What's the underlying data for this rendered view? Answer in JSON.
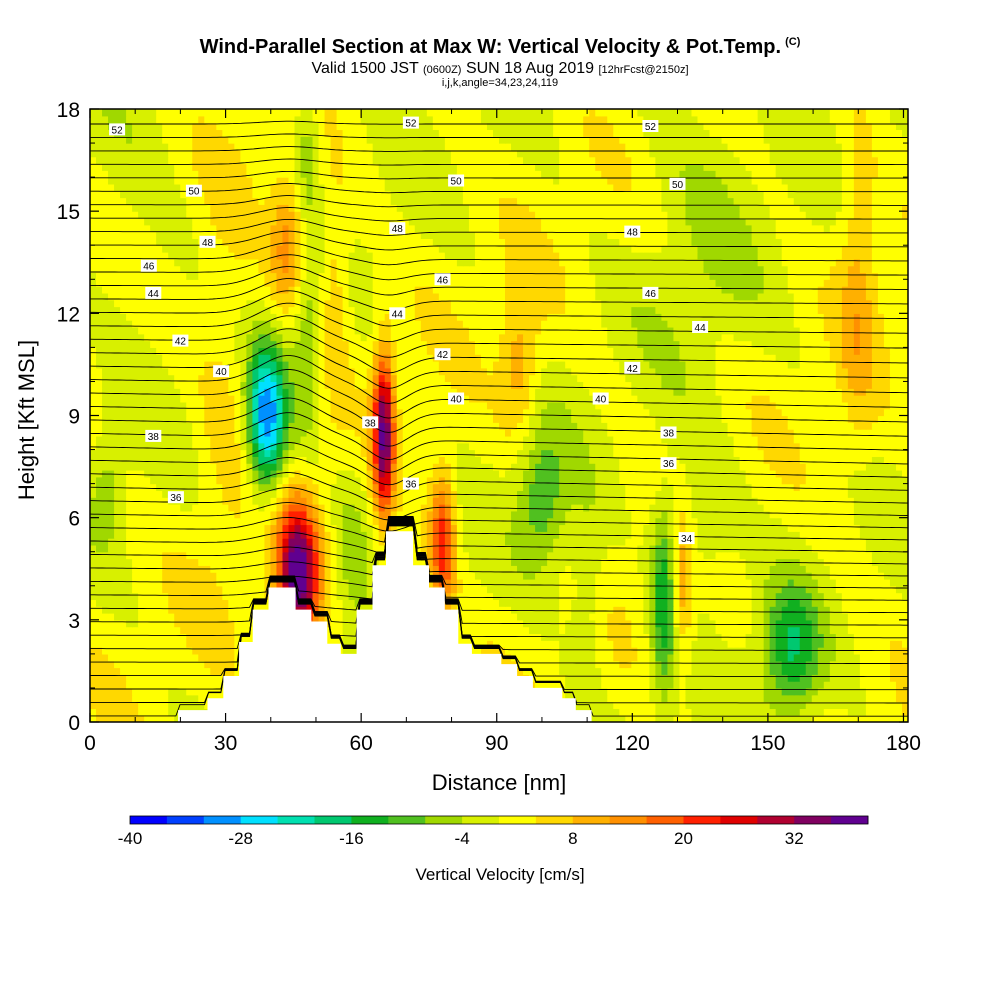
{
  "title": "Wind-Parallel Section at Max W: Vertical Velocity & Pot.Temp.",
  "title_mark": "(C)",
  "subtitle_main": "Valid 1500 JST",
  "subtitle_utc": "(0600Z)",
  "subtitle_date": "SUN 18 Aug 2019",
  "subtitle_fcst": "[12hrFcst@2150z]",
  "subtitle2": "i,j,k,angle=34,23,24,119",
  "colorbar": {
    "title": "Vertical Velocity [cm/s]",
    "tick_labels": [
      "-40",
      "-28",
      "-16",
      "-4",
      "8",
      "20",
      "32"
    ],
    "colors": [
      "#0000ff",
      "#0040ff",
      "#0090ff",
      "#00e0ff",
      "#00e0b0",
      "#00c870",
      "#10b020",
      "#50c020",
      "#a0d800",
      "#d8f000",
      "#ffff00",
      "#ffd800",
      "#ffb000",
      "#ff9000",
      "#ff6000",
      "#ff2000",
      "#e00000",
      "#b00030",
      "#800060",
      "#600090"
    ]
  },
  "chart_data": {
    "type": "heatmap",
    "title": "Wind-Parallel Section at Max W: Vertical Velocity & Pot.Temp.",
    "xlabel": "Distance [nm]",
    "ylabel": "Height [Kft MSL]",
    "xlim": [
      0,
      181
    ],
    "ylim": [
      0,
      18
    ],
    "xticks": [
      0,
      30,
      60,
      90,
      120,
      150,
      180
    ],
    "yticks": [
      0,
      3,
      6,
      9,
      12,
      15,
      18
    ],
    "fill_variable": "Vertical Velocity [cm/s]",
    "fill_range": [
      -40,
      40
    ],
    "contour_variable": "Potential Temperature",
    "terrain_top": [
      [
        0,
        0
      ],
      [
        19.5,
        0
      ],
      [
        19.5,
        0.35
      ],
      [
        26,
        0.35
      ],
      [
        26,
        0.7
      ],
      [
        29.5,
        0.7
      ],
      [
        29.5,
        1.35
      ],
      [
        33,
        1.35
      ],
      [
        33,
        2.35
      ],
      [
        36,
        2.35
      ],
      [
        36,
        3.3
      ],
      [
        39.5,
        3.3
      ],
      [
        39.5,
        3.95
      ],
      [
        45.5,
        3.95
      ],
      [
        45.5,
        3.3
      ],
      [
        49,
        3.3
      ],
      [
        49,
        2.95
      ],
      [
        52.5,
        2.95
      ],
      [
        52.5,
        2.3
      ],
      [
        55.5,
        2.3
      ],
      [
        55.5,
        2.0
      ],
      [
        59,
        2.0
      ],
      [
        59,
        3.3
      ],
      [
        62.5,
        3.3
      ],
      [
        62.5,
        4.6
      ],
      [
        65.5,
        4.6
      ],
      [
        65.5,
        5.6
      ],
      [
        71.5,
        5.6
      ],
      [
        71.5,
        4.6
      ],
      [
        75,
        4.6
      ],
      [
        75,
        3.95
      ],
      [
        78.5,
        3.95
      ],
      [
        78.5,
        3.3
      ],
      [
        81.5,
        3.3
      ],
      [
        81.5,
        2.3
      ],
      [
        84.5,
        2.3
      ],
      [
        84.5,
        2.0
      ],
      [
        91,
        2.0
      ],
      [
        91,
        1.7
      ],
      [
        94.5,
        1.7
      ],
      [
        94.5,
        1.35
      ],
      [
        98,
        1.35
      ],
      [
        98,
        1.0
      ],
      [
        104.5,
        1.0
      ],
      [
        104.5,
        0.7
      ],
      [
        107.5,
        0.7
      ],
      [
        107.5,
        0.35
      ],
      [
        111,
        0.35
      ],
      [
        111,
        0
      ],
      [
        181,
        0
      ]
    ],
    "w_features": [
      {
        "x": 46,
        "y": 4.3,
        "sx": 3.2,
        "sy": 1.5,
        "w": 38
      },
      {
        "x": 65,
        "y": 8.5,
        "sx": 1.6,
        "sy": 1.7,
        "w": 34
      },
      {
        "x": 78,
        "y": 5.3,
        "sx": 2.0,
        "sy": 1.5,
        "w": 22
      },
      {
        "x": 39,
        "y": 8.9,
        "sx": 3.0,
        "sy": 1.5,
        "w": -32
      },
      {
        "x": 44,
        "y": 14.0,
        "sx": 3.0,
        "sy": 1.5,
        "w": 14
      },
      {
        "x": 54,
        "y": 13.0,
        "sx": 2.5,
        "sy": 2.0,
        "w": 8
      },
      {
        "x": 48,
        "y": 11.0,
        "sx": 2.5,
        "sy": 2.0,
        "w": -10
      },
      {
        "x": 48,
        "y": 17.0,
        "sx": 2.0,
        "sy": 1.6,
        "w": -8
      },
      {
        "x": 127,
        "y": 3.5,
        "sx": 2.0,
        "sy": 2.0,
        "w": -16
      },
      {
        "x": 131,
        "y": 4.0,
        "sx": 1.8,
        "sy": 1.6,
        "w": 12
      },
      {
        "x": 155,
        "y": 2.0,
        "sx": 4.5,
        "sy": 1.4,
        "w": -16
      },
      {
        "x": 100,
        "y": 6.5,
        "sx": 4.0,
        "sy": 1.5,
        "w": -12
      },
      {
        "x": 135,
        "y": 6.0,
        "sx": 5.0,
        "sy": 1.5,
        "w": -7
      },
      {
        "x": 110,
        "y": 4.0,
        "sx": 3.0,
        "sy": 2.0,
        "w": -6
      },
      {
        "x": 95,
        "y": 10.5,
        "sx": 3.0,
        "sy": 1.5,
        "w": 10
      },
      {
        "x": 4,
        "y": 7.0,
        "sx": 2.5,
        "sy": 1.2,
        "w": -6
      },
      {
        "x": 170,
        "y": 13.0,
        "sx": 3.0,
        "sy": 3.5,
        "w": 8
      },
      {
        "x": 30,
        "y": 10.0,
        "sx": 5.0,
        "sy": 4.0,
        "w": 5
      },
      {
        "x": 135,
        "y": 15.0,
        "sx": 10.0,
        "sy": 4.0,
        "w": -4
      },
      {
        "x": 58,
        "y": 5.0,
        "sx": 2.5,
        "sy": 2.0,
        "w": -6
      },
      {
        "x": 10,
        "y": 15.0,
        "sx": 10.0,
        "sy": 3.0,
        "w": -3
      }
    ],
    "theta_levels": [
      34,
      36,
      38,
      40,
      42,
      44,
      46,
      48,
      50,
      52
    ],
    "theta_labels": [
      {
        "text": "52",
        "x": 6,
        "y": 17.4
      },
      {
        "text": "52",
        "x": 71,
        "y": 17.6
      },
      {
        "text": "52",
        "x": 124,
        "y": 17.5
      },
      {
        "text": "50",
        "x": 23,
        "y": 15.6
      },
      {
        "text": "50",
        "x": 81,
        "y": 15.9
      },
      {
        "text": "50",
        "x": 130,
        "y": 15.8
      },
      {
        "text": "48",
        "x": 26,
        "y": 14.1
      },
      {
        "text": "48",
        "x": 68,
        "y": 14.5
      },
      {
        "text": "48",
        "x": 120,
        "y": 14.4
      },
      {
        "text": "46",
        "x": 13,
        "y": 13.4
      },
      {
        "text": "46",
        "x": 78,
        "y": 13.0
      },
      {
        "text": "46",
        "x": 124,
        "y": 12.6
      },
      {
        "text": "44",
        "x": 14,
        "y": 12.6
      },
      {
        "text": "44",
        "x": 68,
        "y": 12.0
      },
      {
        "text": "44",
        "x": 135,
        "y": 11.6
      },
      {
        "text": "42",
        "x": 20,
        "y": 11.2
      },
      {
        "text": "42",
        "x": 78,
        "y": 10.8
      },
      {
        "text": "42",
        "x": 120,
        "y": 10.4
      },
      {
        "text": "40",
        "x": 29,
        "y": 10.3
      },
      {
        "text": "40",
        "x": 81,
        "y": 9.5
      },
      {
        "text": "40",
        "x": 113,
        "y": 9.5
      },
      {
        "text": "38",
        "x": 14,
        "y": 8.4
      },
      {
        "text": "38",
        "x": 62,
        "y": 8.8
      },
      {
        "text": "38",
        "x": 128,
        "y": 8.5
      },
      {
        "text": "36",
        "x": 19,
        "y": 6.6
      },
      {
        "text": "36",
        "x": 71,
        "y": 7.0
      },
      {
        "text": "36",
        "x": 128,
        "y": 7.6
      },
      {
        "text": "34",
        "x": 132,
        "y": 5.4
      }
    ]
  }
}
